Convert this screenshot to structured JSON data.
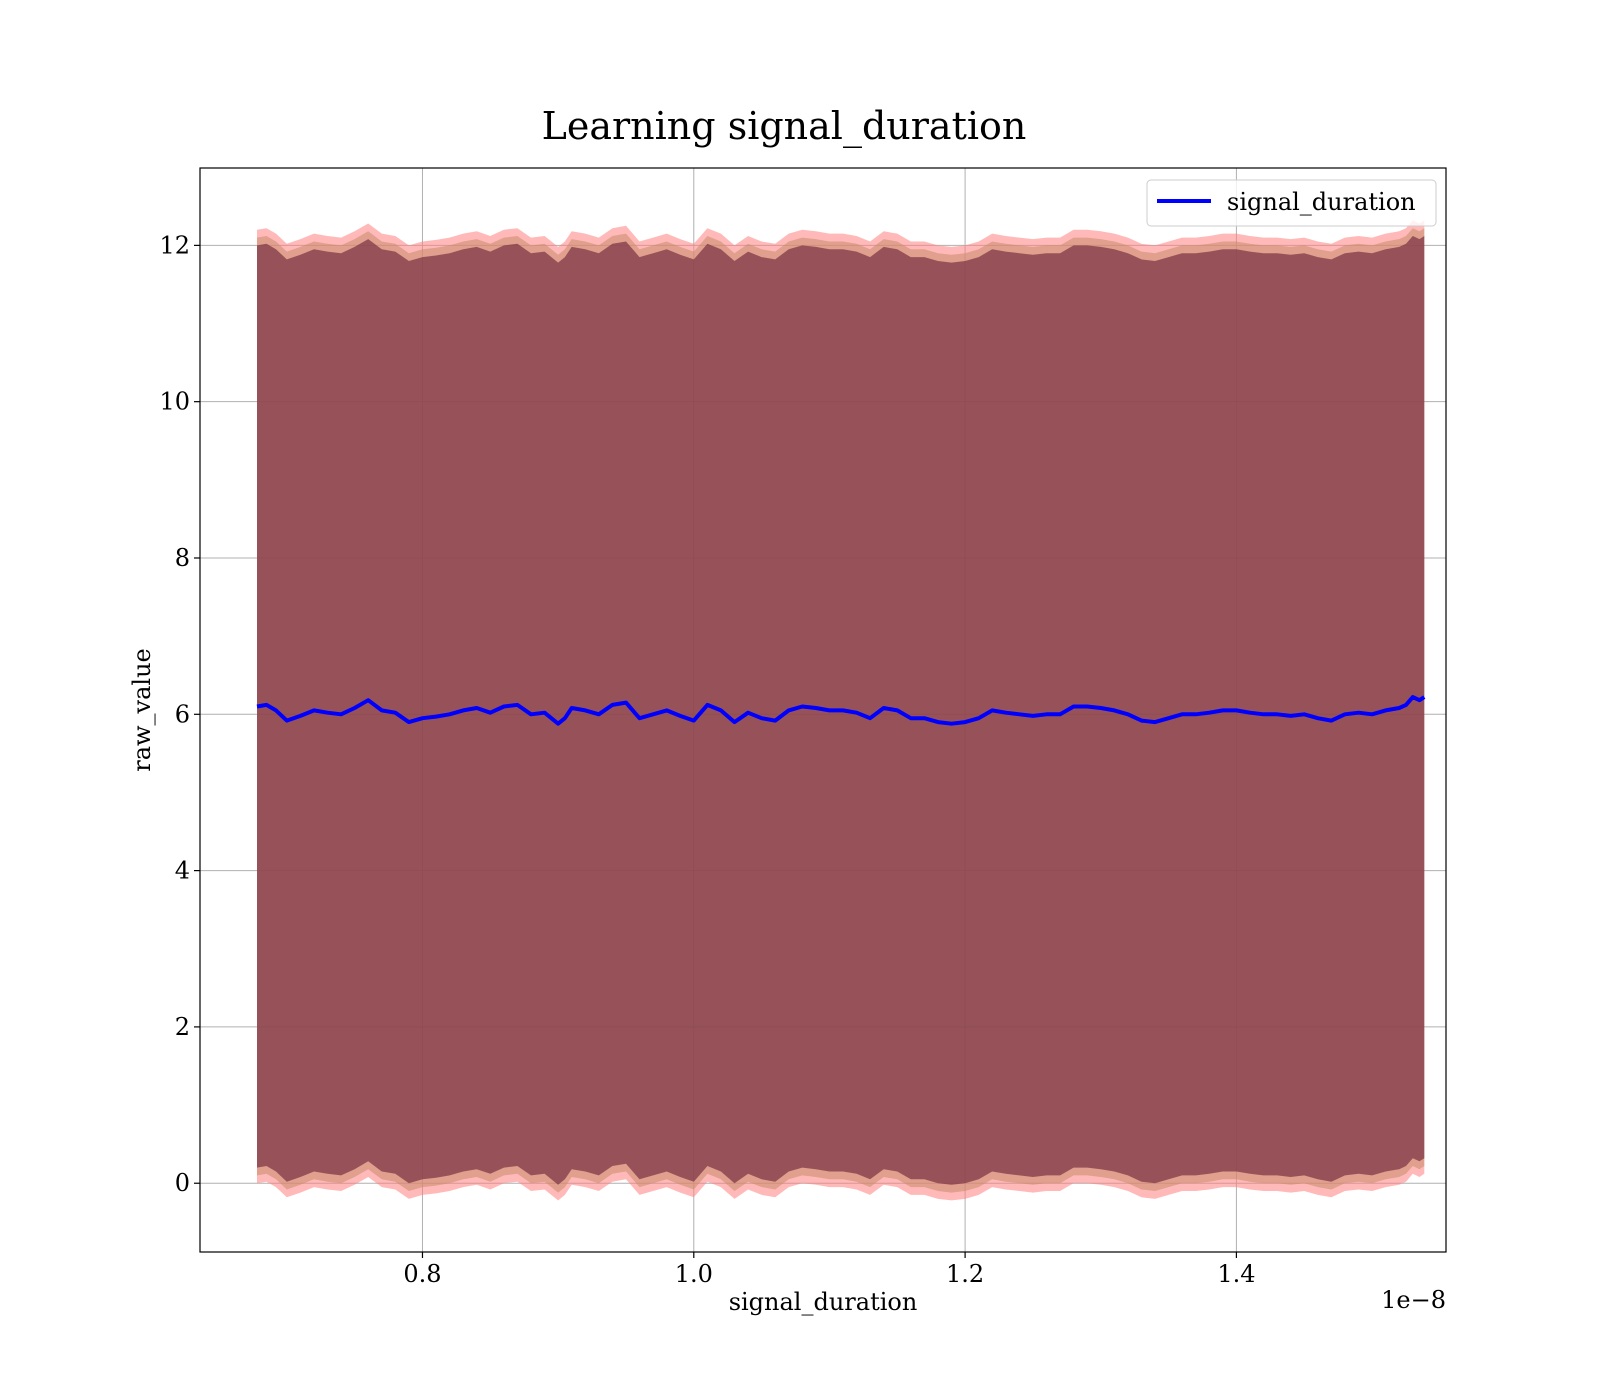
{
  "chart_data": {
    "type": "line",
    "title": "Learning signal_duration",
    "xlabel": "signal_duration",
    "ylabel": "raw_value",
    "x_offset_label": "1e−8",
    "xlim": [
      0.636,
      1.5545
    ],
    "ylim": [
      -0.88,
      12.99
    ],
    "x_ticks": [
      0.8,
      1.0,
      1.2,
      1.4
    ],
    "x_tick_labels": [
      "0.8",
      "1.0",
      "1.2",
      "1.4"
    ],
    "y_ticks": [
      0,
      2,
      4,
      6,
      8,
      10,
      12
    ],
    "y_tick_labels": [
      "0",
      "2",
      "4",
      "6",
      "8",
      "10",
      "12"
    ],
    "grid": true,
    "legend": {
      "position": "top-right",
      "entries": [
        "signal_duration"
      ]
    },
    "x_range": [
      0.678,
      1.5385
    ],
    "band_half_widths": [
      6.1,
      6.0,
      5.9
    ],
    "series": [
      {
        "name": "signal_duration",
        "color": "#0000ff",
        "x": [
          0.678,
          0.685,
          0.692,
          0.7,
          0.71,
          0.72,
          0.73,
          0.74,
          0.75,
          0.76,
          0.77,
          0.78,
          0.79,
          0.8,
          0.81,
          0.82,
          0.83,
          0.84,
          0.85,
          0.86,
          0.87,
          0.88,
          0.89,
          0.9,
          0.905,
          0.91,
          0.92,
          0.93,
          0.94,
          0.95,
          0.96,
          0.97,
          0.98,
          0.99,
          1.0,
          1.01,
          1.02,
          1.03,
          1.04,
          1.05,
          1.06,
          1.07,
          1.08,
          1.09,
          1.1,
          1.11,
          1.12,
          1.13,
          1.14,
          1.15,
          1.16,
          1.17,
          1.18,
          1.19,
          1.2,
          1.21,
          1.22,
          1.23,
          1.24,
          1.25,
          1.26,
          1.27,
          1.28,
          1.29,
          1.3,
          1.31,
          1.32,
          1.33,
          1.34,
          1.35,
          1.36,
          1.37,
          1.38,
          1.39,
          1.4,
          1.41,
          1.42,
          1.43,
          1.44,
          1.45,
          1.46,
          1.47,
          1.48,
          1.49,
          1.5,
          1.51,
          1.52,
          1.525,
          1.53,
          1.535,
          1.5385
        ],
        "y": [
          6.1,
          6.12,
          6.05,
          5.92,
          5.98,
          6.05,
          6.02,
          6.0,
          6.08,
          6.18,
          6.05,
          6.02,
          5.9,
          5.95,
          5.97,
          6.0,
          6.05,
          6.08,
          6.02,
          6.1,
          6.12,
          6.0,
          6.02,
          5.88,
          5.95,
          6.08,
          6.05,
          6.0,
          6.12,
          6.15,
          5.95,
          6.0,
          6.05,
          5.98,
          5.92,
          6.12,
          6.05,
          5.9,
          6.02,
          5.95,
          5.92,
          6.05,
          6.1,
          6.08,
          6.05,
          6.05,
          6.02,
          5.95,
          6.08,
          6.05,
          5.95,
          5.95,
          5.9,
          5.88,
          5.9,
          5.95,
          6.05,
          6.02,
          6.0,
          5.98,
          6.0,
          6.0,
          6.1,
          6.1,
          6.08,
          6.05,
          6.0,
          5.92,
          5.9,
          5.95,
          6.0,
          6.0,
          6.02,
          6.05,
          6.05,
          6.02,
          6.0,
          6.0,
          5.98,
          6.0,
          5.95,
          5.92,
          6.0,
          6.02,
          6.0,
          6.05,
          6.08,
          6.12,
          6.22,
          6.18,
          6.22
        ]
      }
    ]
  },
  "colors": {
    "line": "#0000ff",
    "band_inner": "#6e2a3e",
    "band_mid": "#c98a6a",
    "band_outer": "#ff8080",
    "grid": "#b0b0b0",
    "text": "#000000"
  }
}
